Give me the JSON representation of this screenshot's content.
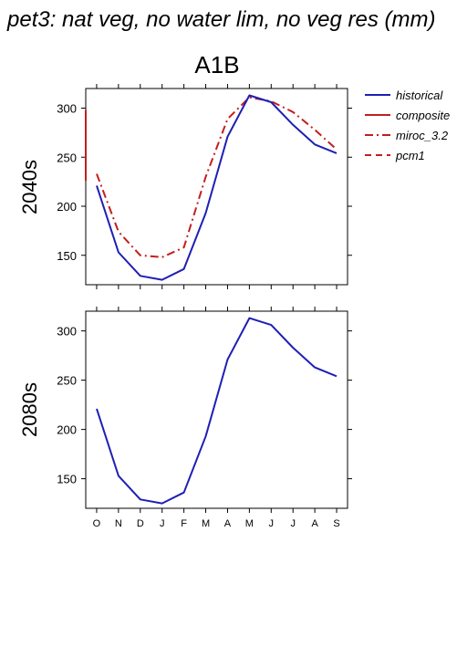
{
  "title": "pet3: nat veg, no water lim, no veg res (mm)",
  "scenario": "A1B",
  "months": [
    "O",
    "N",
    "D",
    "J",
    "F",
    "M",
    "A",
    "M",
    "J",
    "J",
    "A",
    "S"
  ],
  "legend": [
    {
      "label": "historical",
      "color": "#1f1fb4",
      "dash": "solid"
    },
    {
      "label": "composite",
      "color": "#c41e1e",
      "dash": "solid"
    },
    {
      "label": "miroc_3.2",
      "color": "#c41e1e",
      "dash": "dashdot"
    },
    {
      "label": "pcm1",
      "color": "#c41e1e",
      "dash": "dashed"
    }
  ],
  "chart_data": [
    {
      "type": "line",
      "title": "A1B",
      "ylabel": "2040s",
      "categories": [
        "O",
        "N",
        "D",
        "J",
        "F",
        "M",
        "A",
        "M",
        "J",
        "J",
        "A",
        "S"
      ],
      "ylim": [
        120,
        320
      ],
      "yticks": [
        150,
        200,
        250,
        300
      ],
      "series": [
        {
          "name": "historical",
          "values": [
            221,
            153,
            129,
            125,
            136,
            193,
            271,
            313,
            306,
            283,
            263,
            254
          ]
        },
        {
          "name": "miroc_3.2",
          "values": [
            233,
            174,
            150,
            148,
            158,
            230,
            289,
            311,
            307,
            296,
            278,
            258
          ]
        }
      ]
    },
    {
      "type": "line",
      "ylabel": "2080s",
      "categories": [
        "O",
        "N",
        "D",
        "J",
        "F",
        "M",
        "A",
        "M",
        "J",
        "J",
        "A",
        "S"
      ],
      "ylim": [
        120,
        320
      ],
      "yticks": [
        150,
        200,
        250,
        300
      ],
      "series": [
        {
          "name": "historical",
          "values": [
            221,
            153,
            129,
            125,
            136,
            193,
            271,
            313,
            306,
            283,
            263,
            254
          ]
        }
      ]
    }
  ]
}
